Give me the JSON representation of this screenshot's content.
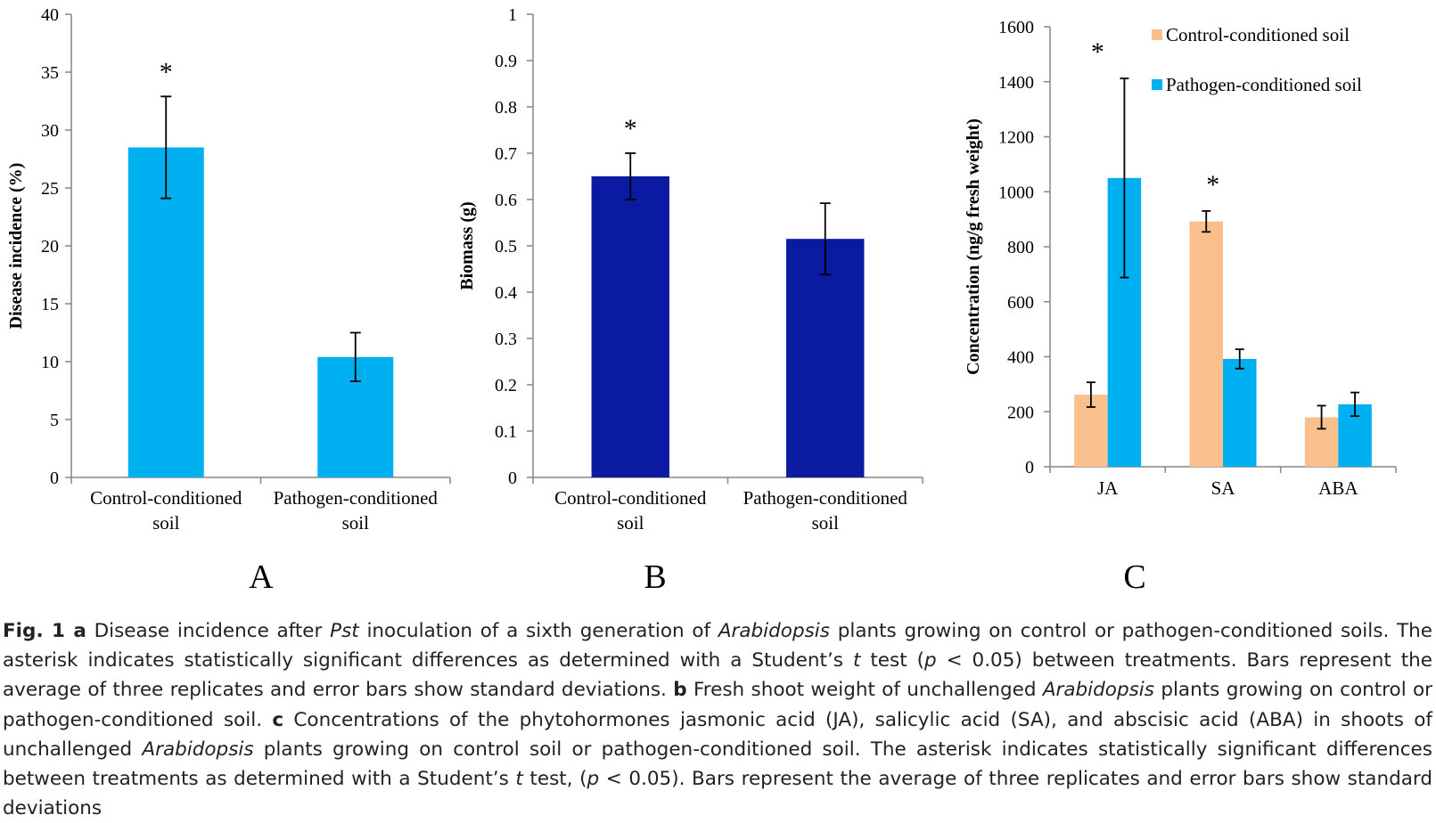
{
  "chart_data": [
    {
      "type": "bar",
      "panel_label": "A",
      "ylabel": "Disease incidence (%)",
      "ylim": [
        0,
        40
      ],
      "yticks": [
        0,
        5,
        10,
        15,
        20,
        25,
        30,
        35,
        40
      ],
      "categories": [
        [
          "Control-conditioned",
          "soil"
        ],
        [
          "Pathogen-conditioned",
          "soil"
        ]
      ],
      "values": [
        28.5,
        10.4
      ],
      "errors": [
        4.4,
        2.1
      ],
      "significance": [
        "*",
        ""
      ],
      "bar_color": "#00b0f0"
    },
    {
      "type": "bar",
      "panel_label": "B",
      "ylabel": "Biomass (g)",
      "ylim": [
        0,
        1
      ],
      "yticks": [
        0,
        0.1,
        0.2,
        0.3,
        0.4,
        0.5,
        0.6,
        0.7,
        0.8,
        0.9,
        1
      ],
      "categories": [
        [
          "Control-conditioned",
          "soil"
        ],
        [
          "Pathogen-conditioned",
          "soil"
        ]
      ],
      "values": [
        0.65,
        0.515
      ],
      "errors": [
        0.05,
        0.077
      ],
      "significance": [
        "*",
        ""
      ],
      "bar_color": "#0a1ba2"
    },
    {
      "type": "bar",
      "panel_label": "C",
      "ylabel": "Concentration (ng/g fresh weight)",
      "ylim": [
        0,
        1600
      ],
      "yticks": [
        0,
        200,
        400,
        600,
        800,
        1000,
        1200,
        1400,
        1600
      ],
      "categories": [
        "JA",
        "SA",
        "ABA"
      ],
      "legend_position": "top-right",
      "series": [
        {
          "name": "Control-conditioned soil",
          "color": "#f9c08e",
          "values": [
            262,
            892,
            180
          ],
          "errors": [
            45,
            38,
            42
          ]
        },
        {
          "name": "Pathogen-conditioned soil",
          "color": "#00b0f0",
          "values": [
            1050,
            392,
            227
          ],
          "errors": [
            362,
            35,
            43
          ]
        }
      ],
      "significance": [
        {
          "category": "JA",
          "mark": "*"
        },
        {
          "category": "SA",
          "mark": "*"
        }
      ]
    }
  ],
  "caption": {
    "segments": [
      {
        "t": "Fig. 1 ",
        "s": "b"
      },
      {
        "t": "a",
        "s": "b"
      },
      {
        "t": " Disease incidence after "
      },
      {
        "t": "Pst",
        "s": "i"
      },
      {
        "t": " inoculation of a sixth generation of "
      },
      {
        "t": "Arabidopsis",
        "s": "i"
      },
      {
        "t": " plants growing on control or pathogen-conditioned soils. The asterisk indicates statistically significant differences as determined with a Student’s "
      },
      {
        "t": "t",
        "s": "i"
      },
      {
        "t": " test ("
      },
      {
        "t": "p",
        "s": "i"
      },
      {
        "t": " < 0.05) between treatments. Bars represent the average of three replicates and error bars show standard deviations. "
      },
      {
        "t": "b",
        "s": "b"
      },
      {
        "t": " Fresh shoot weight of unchallenged "
      },
      {
        "t": "Arabidopsis",
        "s": "i"
      },
      {
        "t": " plants growing on control or pathogen-conditioned soil. "
      },
      {
        "t": "c",
        "s": "b"
      },
      {
        "t": " Concentrations of the phytohormones jasmonic acid (JA), salicylic acid (SA), and abscisic acid (ABA) in shoots of unchallenged "
      },
      {
        "t": "Arabidopsis",
        "s": "i"
      },
      {
        "t": " plants growing on control soil or pathogen-conditioned soil. The asterisk indicates statistically significant differences between treatments as determined with a Student’s "
      },
      {
        "t": "t",
        "s": "i"
      },
      {
        "t": " test, ("
      },
      {
        "t": "p",
        "s": "i"
      },
      {
        "t": " < 0.05). Bars represent the average of three replicates and error bars show standard deviations"
      }
    ]
  }
}
